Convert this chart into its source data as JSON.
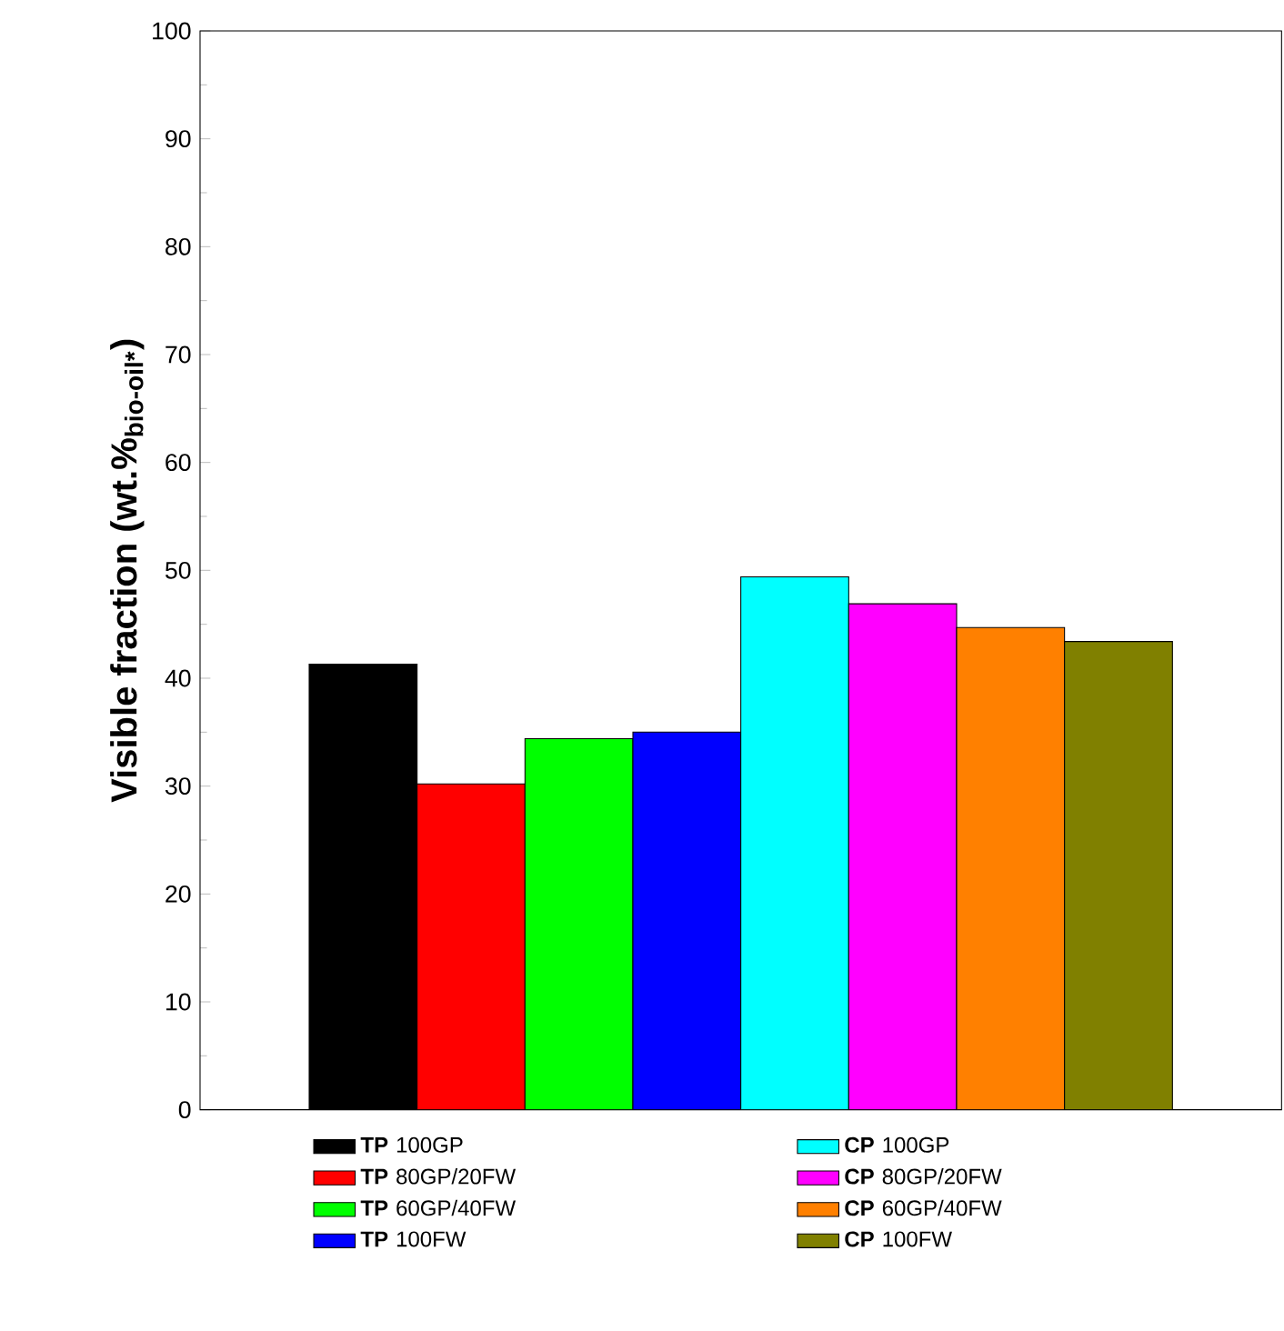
{
  "chart_data": {
    "type": "bar",
    "ylabel": "Visible fraction (wt.%$_{bio-oil*}$)",
    "categories": [
      null
    ],
    "series": [
      {
        "name": "**TP** 100GP",
        "color": "#000000",
        "values": [
          41.3
        ]
      },
      {
        "name": "**TP** 80GP/20FW",
        "color": "#ff0000",
        "values": [
          30.2
        ]
      },
      {
        "name": "**TP** 60GP/40FW",
        "color": "#00ff00",
        "values": [
          34.4
        ]
      },
      {
        "name": "**TP** 100FW",
        "color": "#0000ff",
        "values": [
          35.0
        ]
      },
      {
        "name": "**CP** 100GP",
        "color": "#00ffff",
        "values": [
          49.4
        ]
      },
      {
        "name": "**CP** 80GP/20FW",
        "color": "#ff00ff",
        "values": [
          46.9
        ]
      },
      {
        "name": "**CP** 60GP/40FW",
        "color": "#ff8000",
        "values": [
          44.7
        ]
      },
      {
        "name": "**CP** 100FW",
        "color": "#808000",
        "values": [
          43.4
        ]
      }
    ],
    "ylim": [
      0,
      100
    ],
    "yticks": [
      0,
      10,
      20,
      30,
      40,
      50,
      60,
      70,
      80,
      90,
      100
    ],
    "legend": "bottom",
    "tick_labels": "y"
  }
}
